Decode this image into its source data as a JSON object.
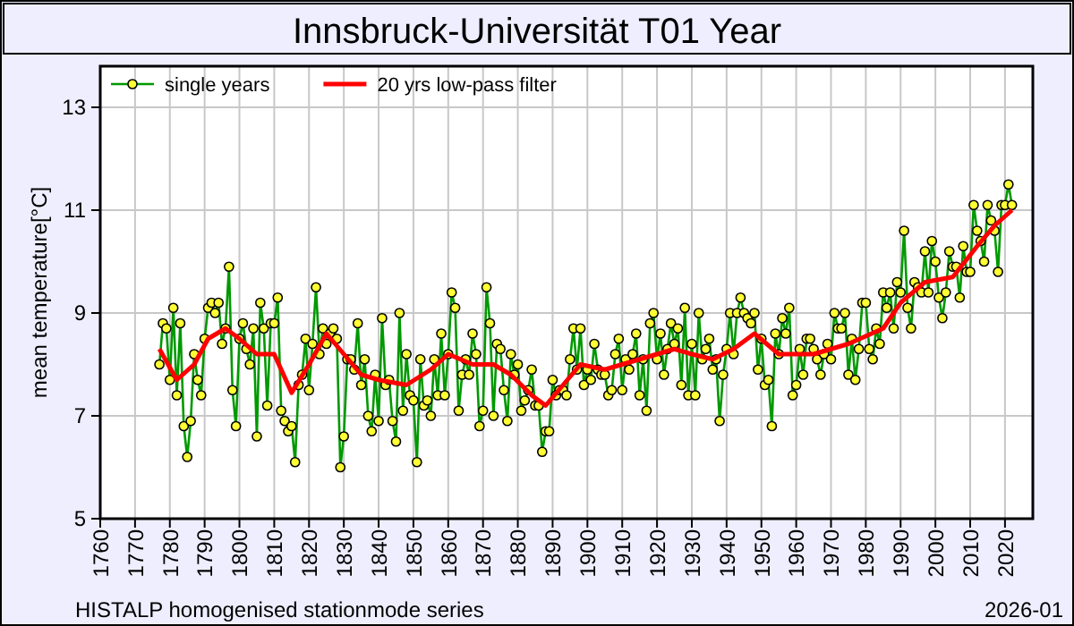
{
  "chart_data": {
    "type": "line",
    "title": "Innsbruck-Universität T01 Year",
    "ylabel": "mean temperature[°C]",
    "xlim": [
      1760,
      2028
    ],
    "xticks": [
      1760,
      1770,
      1780,
      1790,
      1800,
      1810,
      1820,
      1830,
      1840,
      1850,
      1860,
      1870,
      1880,
      1890,
      1900,
      1910,
      1920,
      1930,
      1940,
      1950,
      1960,
      1970,
      1980,
      1990,
      2000,
      2010,
      2020
    ],
    "ylim": [
      5,
      13.8
    ],
    "yticks": [
      5,
      7,
      9,
      11,
      13
    ],
    "grid": true,
    "legend": "top left",
    "annotations": [
      "HISTALP homogenised stationmode series",
      "2026-01"
    ],
    "series": [
      {
        "name": "single years",
        "color": "#009900",
        "marker": "circle",
        "x": [
          1777,
          1778,
          1779,
          1780,
          1781,
          1782,
          1783,
          1784,
          1785,
          1786,
          1787,
          1788,
          1789,
          1790,
          1791,
          1792,
          1793,
          1794,
          1795,
          1796,
          1797,
          1798,
          1799,
          1800,
          1801,
          1802,
          1803,
          1804,
          1805,
          1806,
          1807,
          1808,
          1809,
          1810,
          1811,
          1812,
          1813,
          1814,
          1815,
          1816,
          1817,
          1818,
          1819,
          1820,
          1821,
          1822,
          1823,
          1824,
          1825,
          1826,
          1827,
          1828,
          1829,
          1830,
          1831,
          1832,
          1833,
          1834,
          1835,
          1836,
          1837,
          1838,
          1839,
          1840,
          1841,
          1842,
          1843,
          1844,
          1845,
          1846,
          1847,
          1848,
          1849,
          1850,
          1851,
          1852,
          1853,
          1854,
          1855,
          1856,
          1857,
          1858,
          1859,
          1860,
          1861,
          1862,
          1863,
          1864,
          1865,
          1866,
          1867,
          1868,
          1869,
          1870,
          1871,
          1872,
          1873,
          1874,
          1875,
          1876,
          1877,
          1878,
          1879,
          1880,
          1881,
          1882,
          1883,
          1884,
          1885,
          1886,
          1887,
          1888,
          1889,
          1890,
          1891,
          1892,
          1893,
          1894,
          1895,
          1896,
          1897,
          1898,
          1899,
          1900,
          1901,
          1902,
          1903,
          1904,
          1905,
          1906,
          1907,
          1908,
          1909,
          1910,
          1911,
          1912,
          1913,
          1914,
          1915,
          1916,
          1917,
          1918,
          1919,
          1920,
          1921,
          1922,
          1923,
          1924,
          1925,
          1926,
          1927,
          1928,
          1929,
          1930,
          1931,
          1932,
          1933,
          1934,
          1935,
          1936,
          1937,
          1938,
          1939,
          1940,
          1941,
          1942,
          1943,
          1944,
          1945,
          1946,
          1947,
          1948,
          1949,
          1950,
          1951,
          1952,
          1953,
          1954,
          1955,
          1956,
          1957,
          1958,
          1959,
          1960,
          1961,
          1962,
          1963,
          1964,
          1965,
          1966,
          1967,
          1968,
          1969,
          1970,
          1971,
          1972,
          1973,
          1974,
          1975,
          1976,
          1977,
          1978,
          1979,
          1980,
          1981,
          1982,
          1983,
          1984,
          1985,
          1986,
          1987,
          1988,
          1989,
          1990,
          1991,
          1992,
          1993,
          1994,
          1995,
          1996,
          1997,
          1998,
          1999,
          2000,
          2001,
          2002,
          2003,
          2004,
          2005,
          2006,
          2007,
          2008,
          2009,
          2010,
          2011,
          2012,
          2013,
          2014,
          2015,
          2016,
          2017,
          2018,
          2019,
          2020,
          2021,
          2022
        ],
        "values": [
          8.0,
          8.8,
          8.7,
          7.7,
          9.1,
          7.4,
          8.8,
          6.8,
          6.2,
          6.9,
          8.2,
          7.7,
          7.4,
          8.5,
          9.1,
          9.2,
          9.0,
          9.2,
          8.4,
          8.7,
          9.9,
          7.5,
          6.8,
          8.5,
          8.8,
          8.3,
          8.0,
          8.7,
          6.6,
          9.2,
          8.7,
          7.2,
          8.8,
          8.8,
          9.3,
          7.1,
          6.9,
          6.7,
          6.8,
          6.1,
          7.6,
          7.8,
          8.5,
          7.5,
          8.4,
          9.5,
          8.2,
          8.7,
          8.4,
          8.6,
          8.7,
          8.5,
          6.0,
          6.6,
          8.1,
          8.1,
          7.9,
          8.8,
          7.6,
          8.1,
          7.0,
          6.7,
          7.8,
          6.9,
          8.9,
          7.6,
          7.7,
          6.9,
          6.5,
          9.0,
          7.1,
          8.2,
          7.4,
          7.3,
          6.1,
          8.1,
          7.2,
          7.3,
          7.0,
          8.1,
          7.4,
          8.6,
          7.4,
          8.2,
          9.4,
          9.1,
          7.1,
          7.8,
          8.1,
          7.8,
          8.6,
          8.2,
          6.8,
          7.1,
          9.5,
          8.8,
          7.0,
          8.4,
          8.3,
          7.5,
          6.9,
          8.2,
          7.8,
          8.0,
          7.1,
          7.3,
          7.5,
          7.9,
          7.2,
          7.2,
          6.3,
          6.7,
          6.7,
          7.7,
          7.4,
          7.5,
          7.5,
          7.4,
          8.1,
          8.7,
          7.9,
          8.7,
          7.6,
          7.9,
          7.7,
          8.4,
          7.9,
          7.8,
          7.8,
          7.4,
          7.5,
          8.2,
          8.5,
          7.5,
          8.1,
          7.9,
          8.2,
          8.6,
          7.4,
          8.1,
          7.1,
          8.8,
          9.0,
          8.1,
          8.6,
          7.8,
          8.3,
          8.8,
          8.4,
          8.7,
          7.6,
          9.1,
          7.4,
          8.4,
          7.4,
          9.0,
          8.1,
          8.3,
          8.5,
          7.9,
          8.1,
          6.9,
          7.8,
          8.3,
          9.0,
          8.2,
          9.0,
          9.3,
          9.0,
          8.9,
          8.8,
          9.0,
          7.9,
          8.5,
          7.6,
          7.7,
          6.8,
          8.6,
          8.2,
          8.9,
          8.6,
          9.1,
          7.4,
          7.6,
          8.3,
          7.8,
          8.5,
          8.5,
          8.3,
          8.1,
          7.8,
          8.2,
          8.4,
          8.1,
          9.0,
          8.7,
          8.7,
          9.0,
          7.8,
          8.5,
          7.7,
          8.3,
          9.2,
          9.2,
          8.3,
          8.1,
          8.7,
          8.4,
          9.4,
          9.1,
          9.4,
          8.7,
          9.6,
          9.4,
          10.6,
          9.1,
          8.7,
          9.6,
          9.5,
          9.4,
          10.2,
          9.4,
          10.4,
          10.0,
          9.3,
          8.9,
          9.4,
          10.2,
          9.9,
          9.9,
          9.3,
          10.3,
          9.8,
          9.8,
          11.1,
          10.6,
          10.4,
          10.0,
          11.1,
          10.8,
          10.6,
          9.8,
          11.1,
          11.1,
          11.5,
          11.1
        ]
      },
      {
        "name": "20 yrs low-pass filter",
        "color": "#ff0000",
        "marker": "none",
        "x": [
          1777,
          1782,
          1787,
          1791,
          1796,
          1800,
          1805,
          1810,
          1815,
          1820,
          1825,
          1830,
          1835,
          1840,
          1848,
          1855,
          1860,
          1867,
          1873,
          1878,
          1884,
          1888,
          1893,
          1898,
          1905,
          1910,
          1915,
          1925,
          1930,
          1936,
          1942,
          1948,
          1955,
          1965,
          1975,
          1985,
          1990,
          1997,
          2005,
          2012,
          2017,
          2022
        ],
        "values": [
          8.3,
          7.7,
          8.0,
          8.5,
          8.7,
          8.5,
          8.2,
          8.2,
          7.45,
          8.0,
          8.6,
          8.2,
          7.8,
          7.7,
          7.6,
          7.9,
          8.2,
          8.0,
          8.0,
          7.8,
          7.4,
          7.2,
          7.6,
          8.0,
          7.9,
          8.0,
          8.1,
          8.3,
          8.2,
          8.1,
          8.3,
          8.6,
          8.2,
          8.2,
          8.4,
          8.7,
          9.2,
          9.6,
          9.7,
          10.3,
          10.7,
          11.0
        ]
      }
    ]
  }
}
